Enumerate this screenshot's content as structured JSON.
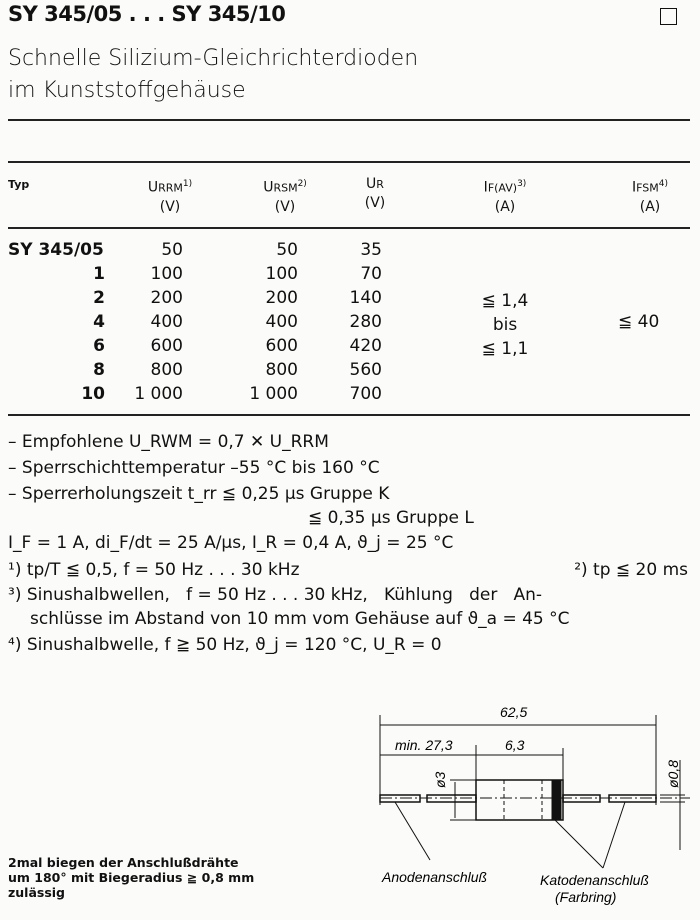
{
  "header": {
    "title": "SY 345/05 . . . SY 345/10",
    "subtitle_lines": [
      "Schnelle Silizium-Gleichrichterdioden",
      "im Kunststoffgehäuse"
    ]
  },
  "table": {
    "columns": [
      {
        "name": "Typ",
        "unit": ""
      },
      {
        "name": "U",
        "sub": "RRM",
        "note": "1)",
        "unit": "(V)"
      },
      {
        "name": "U",
        "sub": "RSM",
        "note": "2)",
        "unit": "(V)"
      },
      {
        "name": "U",
        "sub": "R",
        "note": "",
        "unit": "(V)"
      },
      {
        "name": "I",
        "sub": "F(AV)",
        "note": "3)",
        "unit": "(A)"
      },
      {
        "name": "I",
        "sub": "FSM",
        "note": "4)",
        "unit": "(A)"
      }
    ],
    "rows": [
      {
        "typ": "SY 345/05",
        "urrm": "50",
        "ursm": "50",
        "ur": "35"
      },
      {
        "typ": "1",
        "urrm": "100",
        "ursm": "100",
        "ur": "70"
      },
      {
        "typ": "2",
        "urrm": "200",
        "ursm": "200",
        "ur": "140"
      },
      {
        "typ": "4",
        "urrm": "400",
        "ursm": "400",
        "ur": "280"
      },
      {
        "typ": "6",
        "urrm": "600",
        "ursm": "600",
        "ur": "420"
      },
      {
        "typ": "8",
        "urrm": "800",
        "ursm": "800",
        "ur": "560"
      },
      {
        "typ": "10",
        "urrm": "1 000",
        "ursm": "1 000",
        "ur": "700"
      }
    ],
    "ifav": [
      "≦ 1,4",
      "bis",
      "≦ 1,1"
    ],
    "ifsm": "≦ 40"
  },
  "notes": [
    "– Empfohlene U_RWM = 0,7 ✕ U_RRM",
    "– Sperrschichttemperatur –55 °C bis 160 °C",
    "– Sperrerholungszeit t_rr ≦ 0,25 µs Gruppe K",
    "≦ 0,35 µs Gruppe L",
    "I_F = 1 A, di_F/dt = 25 A/µs, I_R = 0,4 A, ϑ_j = 25 °C",
    "¹) tp/T ≦ 0,5, f = 50 Hz . . . 30 kHz",
    "²) tp ≦ 20 ms",
    "³) Sinushalbwellen,   f = 50 Hz . . . 30 kHz,   Kühlung   der   An-",
    "schlüsse im Abstand von 10 mm vom Gehäuse auf ϑ_a = 45 °C",
    "⁴) Sinushalbwelle, f ≧ 50 Hz, ϑ_j = 120 °C, U_R = 0"
  ],
  "drawing": {
    "dim_total": "62,5",
    "dim_lead": "min. 27,3",
    "dim_body": "6,3",
    "dim_diam": "ø3",
    "dim_wire": "ø0,8",
    "anode_label": "Anodenanschluß",
    "cathode_label": "Katodenanschluß",
    "cathode_sublabel": "(Farbring)"
  },
  "footnote_lines": [
    "2mal biegen der Anschlußdrähte",
    "um 180° mit Biegeradius ≧ 0,8 mm",
    "zulässig"
  ]
}
